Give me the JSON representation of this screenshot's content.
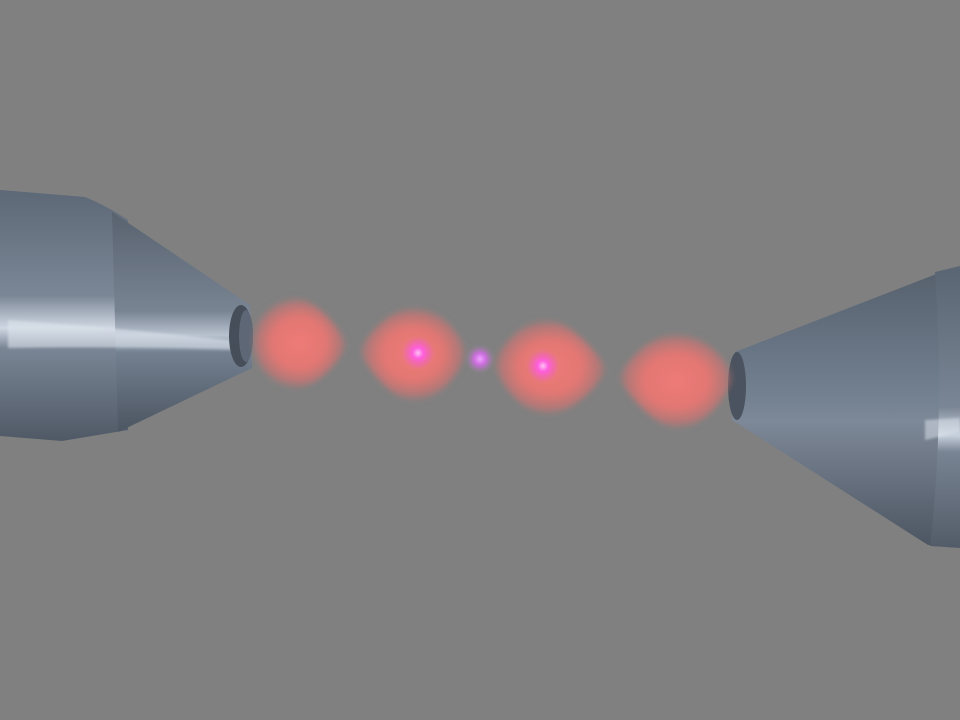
{
  "scene": {
    "background_color": "#808080",
    "electrode_color": "#6b7685",
    "electrode_highlight": "#d9e0ea",
    "lobe_color": "#f07a78",
    "core_color": "#ff5cd6",
    "electrodes": [
      "left-electrode",
      "right-electrode"
    ],
    "lobes": [
      "lobe-1",
      "lobe-2",
      "lobe-3",
      "lobe-4"
    ],
    "bright_cores": [
      "core-1",
      "core-2",
      "core-3"
    ]
  }
}
